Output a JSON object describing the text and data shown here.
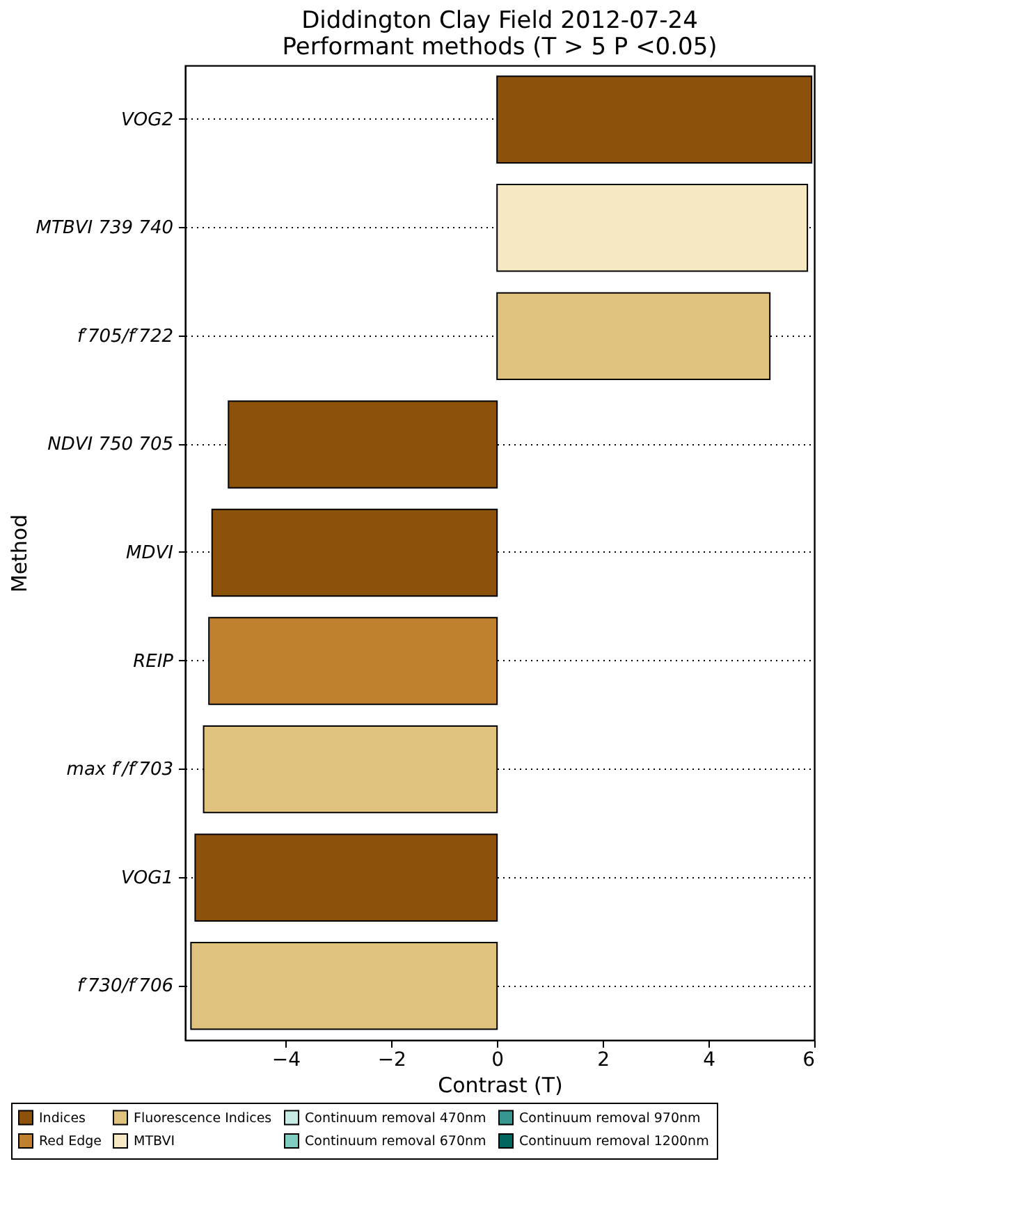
{
  "chart_data": {
    "type": "bar",
    "orientation": "horizontal",
    "title": "Diddington Clay Field 2012-07-24\nPerformant methods (T > 5 P <0.05)",
    "xlabel": "Contrast (T)",
    "ylabel": "Method",
    "categories": [
      "VOG2",
      "MTBVI 739 740",
      "f′705/f′722",
      "NDVI 750 705",
      "MDVI",
      "REIP",
      "max f′/f′703",
      "VOG1",
      "f′730/f′706"
    ],
    "series": [
      {
        "name": "Indices",
        "color": "#8c510a",
        "values": [
          5.95,
          null,
          null,
          -5.08,
          -5.39,
          null,
          null,
          -5.71,
          null
        ]
      },
      {
        "name": "Red Edge",
        "color": "#bf812d",
        "values": [
          null,
          null,
          null,
          null,
          null,
          -5.45,
          null,
          null,
          null
        ]
      },
      {
        "name": "Fluorescence Indices",
        "color": "#dfc27d",
        "values": [
          null,
          null,
          5.16,
          null,
          null,
          null,
          -5.55,
          null,
          -5.79
        ]
      },
      {
        "name": "MTBVI",
        "color": "#f6e8c3",
        "values": [
          null,
          5.87,
          null,
          null,
          null,
          null,
          null,
          null,
          null
        ]
      },
      {
        "name": "Continuum removal 470nm",
        "color": "#c7eae5",
        "values": [
          null,
          null,
          null,
          null,
          null,
          null,
          null,
          null,
          null
        ]
      },
      {
        "name": "Continuum removal 670nm",
        "color": "#80cdc1",
        "values": [
          null,
          null,
          null,
          null,
          null,
          null,
          null,
          null,
          null
        ]
      },
      {
        "name": "Continuum removal 970nm",
        "color": "#35978f",
        "values": [
          null,
          null,
          null,
          null,
          null,
          null,
          null,
          null,
          null
        ]
      },
      {
        "name": "Continuum removal 1200nm",
        "color": "#01665e",
        "values": [
          null,
          null,
          null,
          null,
          null,
          null,
          null,
          null,
          null
        ]
      }
    ],
    "xlim": [
      -5.9,
      6
    ],
    "xticks": [
      -4,
      -2,
      0,
      2,
      4,
      6
    ],
    "grid": "y",
    "legend": "bottom"
  }
}
